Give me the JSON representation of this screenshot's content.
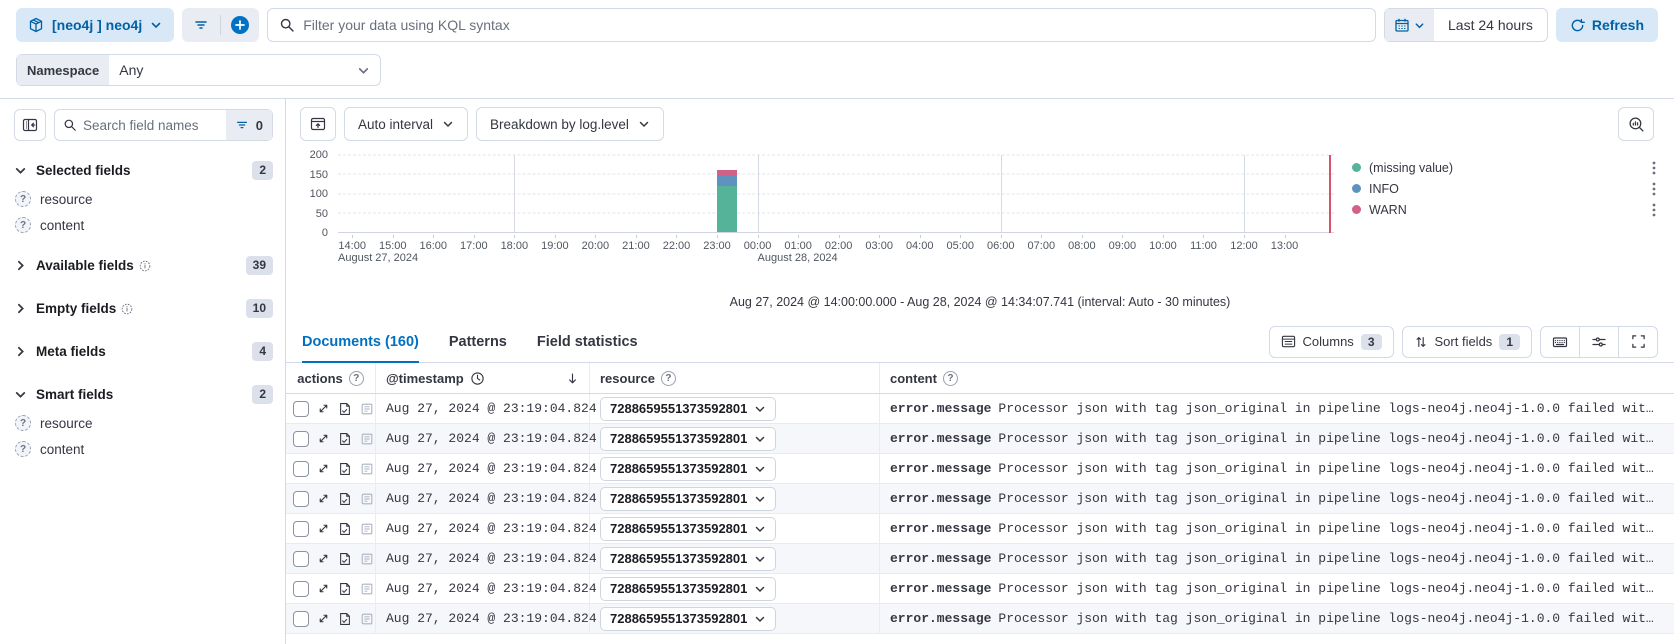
{
  "top_bar": {
    "dataview_label": "[neo4j ] neo4j",
    "kql_placeholder": "Filter your data using KQL syntax",
    "time_range_label": "Last 24 hours",
    "refresh_label": "Refresh"
  },
  "namespace": {
    "label": "Namespace",
    "value": "Any"
  },
  "sidebar": {
    "search_placeholder": "Search field names",
    "filter_count": "0",
    "sections": [
      {
        "label": "Selected fields",
        "count": "2",
        "items": [
          "resource",
          "content"
        ]
      },
      {
        "label": "Available fields",
        "count": "39"
      },
      {
        "label": "Empty fields",
        "count": "10"
      },
      {
        "label": "Meta fields",
        "count": "4"
      },
      {
        "label": "Smart fields",
        "count": "2",
        "items": [
          "resource",
          "content"
        ]
      }
    ]
  },
  "chart_controls": {
    "interval_label": "Auto interval",
    "breakdown_label": "Breakdown by log.level"
  },
  "chart_data": {
    "type": "bar",
    "stacked": true,
    "x": [
      "14:00",
      "15:00",
      "16:00",
      "17:00",
      "18:00",
      "19:00",
      "20:00",
      "21:00",
      "22:00",
      "23:00",
      "00:00",
      "01:00",
      "02:00",
      "03:00",
      "04:00",
      "05:00",
      "06:00",
      "07:00",
      "08:00",
      "09:00",
      "10:00",
      "11:00",
      "12:00",
      "13:00"
    ],
    "day_labels": [
      {
        "text": "August 27, 2024",
        "hour": 0
      },
      {
        "text": "August 28, 2024",
        "hour": 10
      }
    ],
    "series": [
      {
        "name": "(missing value)",
        "color": "#54b399",
        "value": 120,
        "bar_time": "23:00"
      },
      {
        "name": "INFO",
        "color": "#6092c0",
        "value": 25,
        "bar_time": "23:00"
      },
      {
        "name": "WARN",
        "color": "#d36086",
        "value": 15,
        "bar_time": "23:00"
      }
    ],
    "bar_hour": 9,
    "bar_width_hours": 0.5,
    "ylim": [
      0,
      200
    ],
    "y_ticks": [
      0,
      50,
      100,
      150,
      200
    ],
    "total_hours": 24.57,
    "first_tick_offset_hours": 0.35,
    "major_gridline_hours": [
      4,
      10,
      16,
      22
    ],
    "annotation_hour": 24.1,
    "annotation_color": "#d5536a",
    "legend_position": "right",
    "interval": "30 minutes"
  },
  "time_summary": "Aug 27, 2024 @ 14:00:00.000 - Aug 28, 2024 @ 14:34:07.741 (interval: Auto - 30 minutes)",
  "tabs": [
    {
      "label": "Documents (160)"
    },
    {
      "label": "Patterns"
    },
    {
      "label": "Field statistics"
    }
  ],
  "grid_toolbar": {
    "columns_label": "Columns",
    "columns_count": "3",
    "sort_label": "Sort fields",
    "sort_count": "1"
  },
  "table": {
    "headers": {
      "actions": "actions",
      "timestamp": "@timestamp",
      "resource": "resource",
      "content": "content"
    },
    "rows": [
      {
        "timestamp": "Aug 27, 2024 @ 23:19:04.824",
        "resource": "7288659551373592801",
        "field": "error.message",
        "message": "Processor json with tag json_original in pipeline logs-neo4j.neo4j-1.0.0 failed wit…"
      },
      {
        "timestamp": "Aug 27, 2024 @ 23:19:04.824",
        "resource": "7288659551373592801",
        "field": "error.message",
        "message": "Processor json with tag json_original in pipeline logs-neo4j.neo4j-1.0.0 failed wit…"
      },
      {
        "timestamp": "Aug 27, 2024 @ 23:19:04.824",
        "resource": "7288659551373592801",
        "field": "error.message",
        "message": "Processor json with tag json_original in pipeline logs-neo4j.neo4j-1.0.0 failed wit…"
      },
      {
        "timestamp": "Aug 27, 2024 @ 23:19:04.824",
        "resource": "7288659551373592801",
        "field": "error.message",
        "message": "Processor json with tag json_original in pipeline logs-neo4j.neo4j-1.0.0 failed wit…"
      },
      {
        "timestamp": "Aug 27, 2024 @ 23:19:04.824",
        "resource": "7288659551373592801",
        "field": "error.message",
        "message": "Processor json with tag json_original in pipeline logs-neo4j.neo4j-1.0.0 failed wit…"
      },
      {
        "timestamp": "Aug 27, 2024 @ 23:19:04.824",
        "resource": "7288659551373592801",
        "field": "error.message",
        "message": "Processor json with tag json_original in pipeline logs-neo4j.neo4j-1.0.0 failed wit…"
      },
      {
        "timestamp": "Aug 27, 2024 @ 23:19:04.824",
        "resource": "7288659551373592801",
        "field": "error.message",
        "message": "Processor json with tag json_original in pipeline logs-neo4j.neo4j-1.0.0 failed wit…"
      },
      {
        "timestamp": "Aug 27, 2024 @ 23:19:04.824",
        "resource": "7288659551373592801",
        "field": "error.message",
        "message": "Processor json with tag json_original in pipeline logs-neo4j.neo4j-1.0.0 failed wit…"
      }
    ]
  }
}
